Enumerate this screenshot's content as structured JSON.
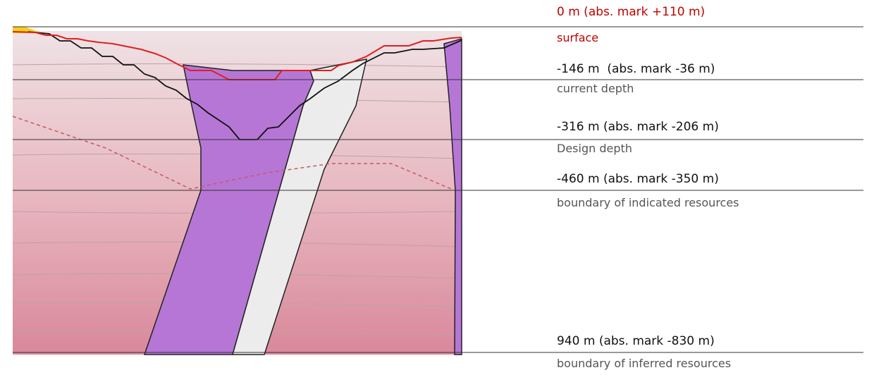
{
  "levels": [
    {
      "depth": "0 m (abs. mark +110 m)",
      "description": "surface"
    },
    {
      "depth": "-146 m  (abs. mark -36 m)",
      "description": "current depth"
    },
    {
      "depth": "-316 m (abs. mark -206 m)",
      "description": "Design depth"
    },
    {
      "depth": "-460 m (abs. mark -350 m)",
      "description": "boundary of indicated resources"
    },
    {
      "depth": "940 m (abs. mark -830 m)",
      "description": "boundary of inferred resources"
    }
  ]
}
